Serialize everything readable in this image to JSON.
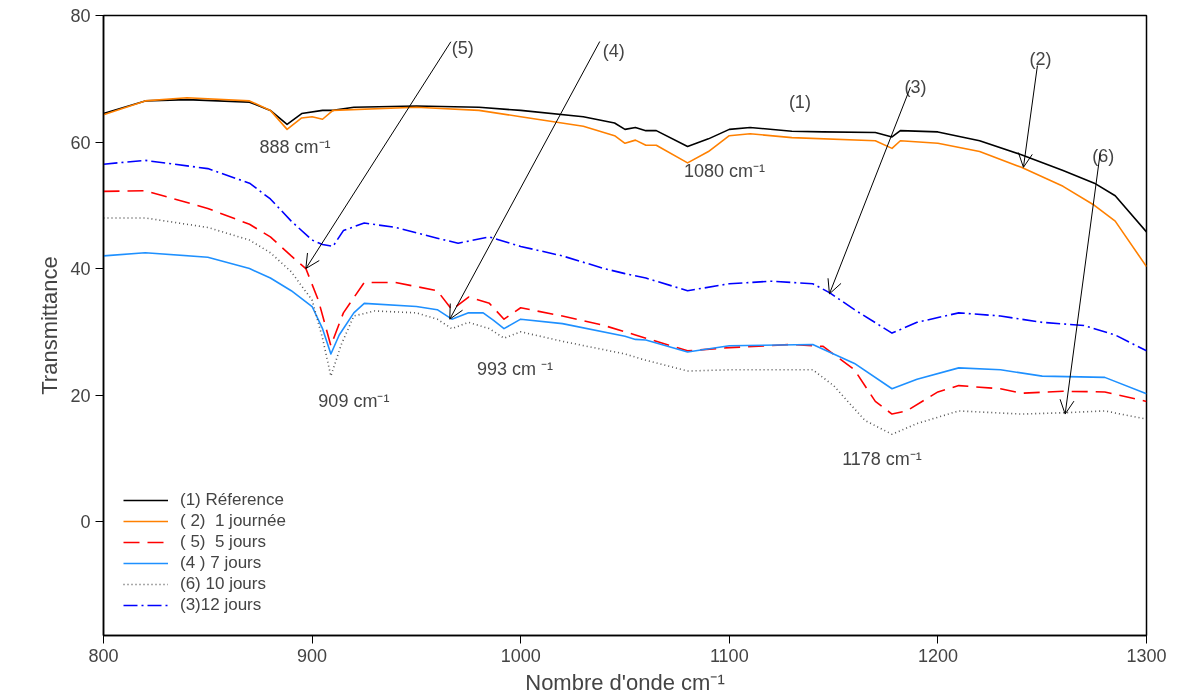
{
  "chart_data": {
    "type": "line",
    "xlabel": "Nombre d'onde cm⁻¹",
    "ylabel": "Transmittance",
    "xlim": [
      800,
      1300
    ],
    "ylim": [
      -18,
      80
    ],
    "xticks": [
      800,
      900,
      1000,
      1100,
      1200,
      1300
    ],
    "yticks": [
      0,
      20,
      40,
      60,
      80
    ],
    "grid": false,
    "legend": "bottom left",
    "marker": "none",
    "series": [
      {
        "name": "(1) Réference",
        "color": "#000000",
        "line_style": "solid",
        "x": [
          800,
          820,
          840,
          870,
          880,
          888,
          895,
          905,
          910,
          920,
          950,
          980,
          1000,
          1030,
          1045,
          1050,
          1055,
          1060,
          1065,
          1080,
          1090,
          1100,
          1110,
          1130,
          1145,
          1170,
          1178,
          1182,
          1200,
          1220,
          1240,
          1260,
          1275,
          1285,
          1300
        ],
        "values": [
          64.5,
          66.5,
          66.7,
          66.3,
          65,
          62.8,
          64.5,
          65,
          65,
          65.5,
          65.7,
          65.5,
          65,
          64,
          63,
          62,
          62.3,
          61.8,
          61.8,
          59.3,
          60.5,
          62,
          62.3,
          61.7,
          61.6,
          61.5,
          60.8,
          61.8,
          61.6,
          60.2,
          58,
          55.5,
          53.5,
          51.5,
          45.8
        ]
      },
      {
        "name": "( 2)  1 journée",
        "color": "#ff8000",
        "line_style": "solid",
        "x": [
          800,
          820,
          840,
          870,
          880,
          888,
          895,
          900,
          905,
          910,
          950,
          980,
          1000,
          1030,
          1045,
          1050,
          1055,
          1060,
          1065,
          1080,
          1090,
          1100,
          1110,
          1130,
          1170,
          1178,
          1182,
          1200,
          1220,
          1240,
          1260,
          1275,
          1285,
          1300
        ],
        "values": [
          64.3,
          66.5,
          67,
          66.5,
          65,
          62,
          63.8,
          64,
          63.6,
          65,
          65.5,
          65,
          64,
          62.5,
          61,
          59.8,
          60.3,
          59.5,
          59.5,
          56.7,
          58.5,
          61,
          61.3,
          60.7,
          60.2,
          59,
          60.2,
          59.8,
          58.5,
          56,
          53,
          50,
          47.5,
          40.3
        ]
      },
      {
        "name": "( 5)  5 jours",
        "color": "#ff0000",
        "line_style": "dashed",
        "x": [
          800,
          820,
          850,
          870,
          880,
          890,
          897,
          903,
          909,
          915,
          925,
          940,
          960,
          967,
          975,
          985,
          992,
          1000,
          1020,
          1040,
          1055,
          1060,
          1080,
          1100,
          1130,
          1145,
          1160,
          1170,
          1178,
          1185,
          1200,
          1210,
          1230,
          1240,
          1260,
          1280,
          1300
        ],
        "values": [
          52.2,
          52.3,
          49.5,
          47,
          45,
          42,
          40,
          35,
          27.8,
          33,
          37.8,
          37.8,
          36.5,
          33.5,
          35.5,
          34.5,
          32,
          33.8,
          32.5,
          31,
          29.5,
          29,
          27,
          27.5,
          28,
          27.7,
          24,
          19,
          17,
          17.5,
          20.5,
          21.5,
          21,
          20.3,
          20.6,
          20.5,
          19
        ]
      },
      {
        "name": "(4 ) 7 jours",
        "color": "#1e90ff",
        "line_style": "solid",
        "x": [
          800,
          820,
          850,
          870,
          880,
          890,
          900,
          905,
          909,
          913,
          920,
          925,
          950,
          960,
          967,
          975,
          982,
          987,
          992,
          1000,
          1020,
          1050,
          1055,
          1060,
          1080,
          1100,
          1140,
          1160,
          1178,
          1190,
          1210,
          1230,
          1250,
          1280,
          1300
        ],
        "values": [
          42,
          42.5,
          41.8,
          40,
          38.5,
          36.5,
          34,
          30.5,
          26.5,
          29.5,
          33,
          34.5,
          34,
          33.5,
          32,
          33,
          33,
          31.8,
          30.5,
          32,
          31.3,
          29.3,
          28.8,
          28.7,
          26.8,
          27.8,
          28,
          25,
          21,
          22.5,
          24.3,
          24,
          23,
          22.8,
          20.2
        ]
      },
      {
        "name": "(6) 10 jours",
        "color": "#555555",
        "line_style": "dotted",
        "x": [
          800,
          820,
          850,
          870,
          880,
          890,
          900,
          905,
          909,
          914,
          920,
          930,
          950,
          960,
          967,
          975,
          985,
          992,
          1000,
          1020,
          1050,
          1060,
          1080,
          1100,
          1140,
          1150,
          1165,
          1178,
          1190,
          1210,
          1240,
          1260,
          1280,
          1300
        ],
        "values": [
          48,
          48,
          46.5,
          44.5,
          42.5,
          39.5,
          35,
          29,
          23,
          28,
          32.5,
          33.3,
          33,
          32,
          30.5,
          31.5,
          30.5,
          29,
          30,
          28.5,
          26.5,
          25.5,
          23.8,
          24,
          24,
          21.5,
          16,
          13.8,
          15.5,
          17.5,
          17,
          17.2,
          17.5,
          16.2
        ]
      },
      {
        "name": "(3)12 jours",
        "color": "#0000ff",
        "line_style": "dashdot",
        "x": [
          800,
          820,
          850,
          870,
          880,
          890,
          900,
          905,
          910,
          915,
          925,
          940,
          960,
          970,
          985,
          1000,
          1020,
          1040,
          1050,
          1060,
          1080,
          1100,
          1120,
          1140,
          1148,
          1160,
          1178,
          1190,
          1210,
          1230,
          1250,
          1270,
          1285,
          1300
        ],
        "values": [
          56.5,
          57.1,
          55.8,
          53.5,
          51,
          47.5,
          44.5,
          43.8,
          43.5,
          46,
          47.2,
          46.5,
          44.8,
          44,
          45,
          43.5,
          42,
          40,
          39.2,
          38.5,
          36.5,
          37.6,
          38,
          37.6,
          36.2,
          33.5,
          29.8,
          31.5,
          33,
          32.5,
          31.5,
          31,
          29.5,
          27
        ]
      }
    ],
    "annotations": [
      {
        "text": "888 cm⁻¹",
        "x": 888,
        "y": 62.8
      },
      {
        "text": "909 cm⁻¹",
        "x": 909,
        "y": 23
      },
      {
        "text": "993 cm ⁻¹",
        "x": 992,
        "y": 29
      },
      {
        "text": "1080 cm⁻¹",
        "x": 1080,
        "y": 56.7
      },
      {
        "text": "1178 cm⁻¹",
        "x": 1178,
        "y": 13.8
      },
      {
        "text": "(1)",
        "x": 1130,
        "y": 61.7
      },
      {
        "text": "(5)",
        "x": 897,
        "y": 40
      },
      {
        "text": "(4)",
        "x": 966,
        "y": 32
      },
      {
        "text": "(3)",
        "x": 1148,
        "y": 36
      },
      {
        "text": "(2)",
        "x": 1241,
        "y": 56
      },
      {
        "text": "(6)",
        "x": 1261,
        "y": 17
      }
    ]
  }
}
